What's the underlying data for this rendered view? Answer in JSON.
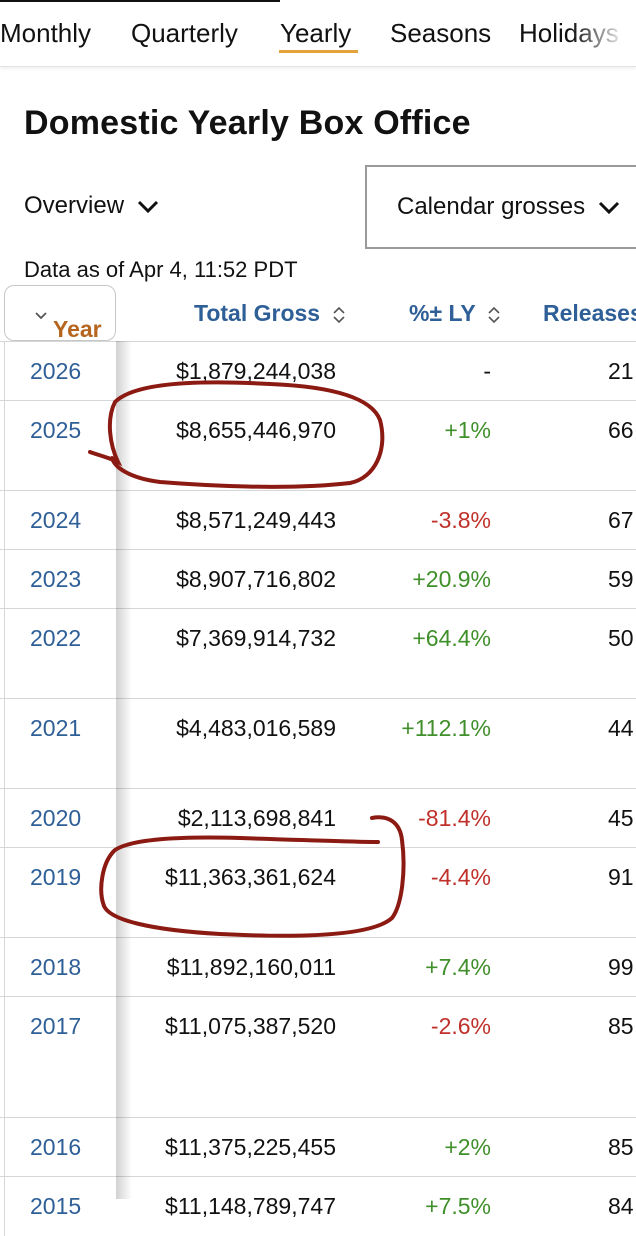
{
  "tabs": [
    {
      "label": "Monthly",
      "active": false
    },
    {
      "label": "Quarterly",
      "active": false
    },
    {
      "label": "Yearly",
      "active": true
    },
    {
      "label": "Seasons",
      "active": false
    },
    {
      "label": "Holidays",
      "active": false
    }
  ],
  "title": "Domestic Yearly Box Office",
  "overview_label": "Overview",
  "calendar_label": "Calendar grosses",
  "as_of": "Data as of Apr 4, 11:52 PDT",
  "table": {
    "headers": {
      "year": "Year",
      "gross": "Total Gross",
      "pct": "%± LY",
      "releases": "Releases"
    },
    "rows": [
      {
        "year": "2026",
        "gross": "$1,879,244,038",
        "pct": "-",
        "releases": "21",
        "trend": "neutral"
      },
      {
        "year": "2025",
        "gross": "$8,655,446,970",
        "pct": "+1%",
        "releases": "66",
        "trend": "up"
      },
      {
        "year": "2024",
        "gross": "$8,571,249,443",
        "pct": "-3.8%",
        "releases": "67",
        "trend": "down"
      },
      {
        "year": "2023",
        "gross": "$8,907,716,802",
        "pct": "+20.9%",
        "releases": "59",
        "trend": "up"
      },
      {
        "year": "2022",
        "gross": "$7,369,914,732",
        "pct": "+64.4%",
        "releases": "50",
        "trend": "up"
      },
      {
        "year": "2021",
        "gross": "$4,483,016,589",
        "pct": "+112.1%",
        "releases": "44",
        "trend": "up"
      },
      {
        "year": "2020",
        "gross": "$2,113,698,841",
        "pct": "-81.4%",
        "releases": "45",
        "trend": "down"
      },
      {
        "year": "2019",
        "gross": "$11,363,361,624",
        "pct": "-4.4%",
        "releases": "91",
        "trend": "down"
      },
      {
        "year": "2018",
        "gross": "$11,892,160,011",
        "pct": "+7.4%",
        "releases": "99",
        "trend": "up"
      },
      {
        "year": "2017",
        "gross": "$11,075,387,520",
        "pct": "-2.6%",
        "releases": "85",
        "trend": "down"
      },
      {
        "year": "2016",
        "gross": "$11,375,225,455",
        "pct": "+2%",
        "releases": "85",
        "trend": "up"
      },
      {
        "year": "2015",
        "gross": "$11,148,789,747",
        "pct": "+7.5%",
        "releases": "84",
        "trend": "up"
      }
    ]
  },
  "colors": {
    "link": "#2e5f97",
    "year_header": "#b5651d",
    "tab_underline": "#e4a33a",
    "positive": "#3f8f2a",
    "negative": "#c0302a",
    "annotation": "#8b1a12"
  },
  "icons": {
    "dropdown": "chevron-down-icon",
    "sort": "sort-updown-icon"
  }
}
